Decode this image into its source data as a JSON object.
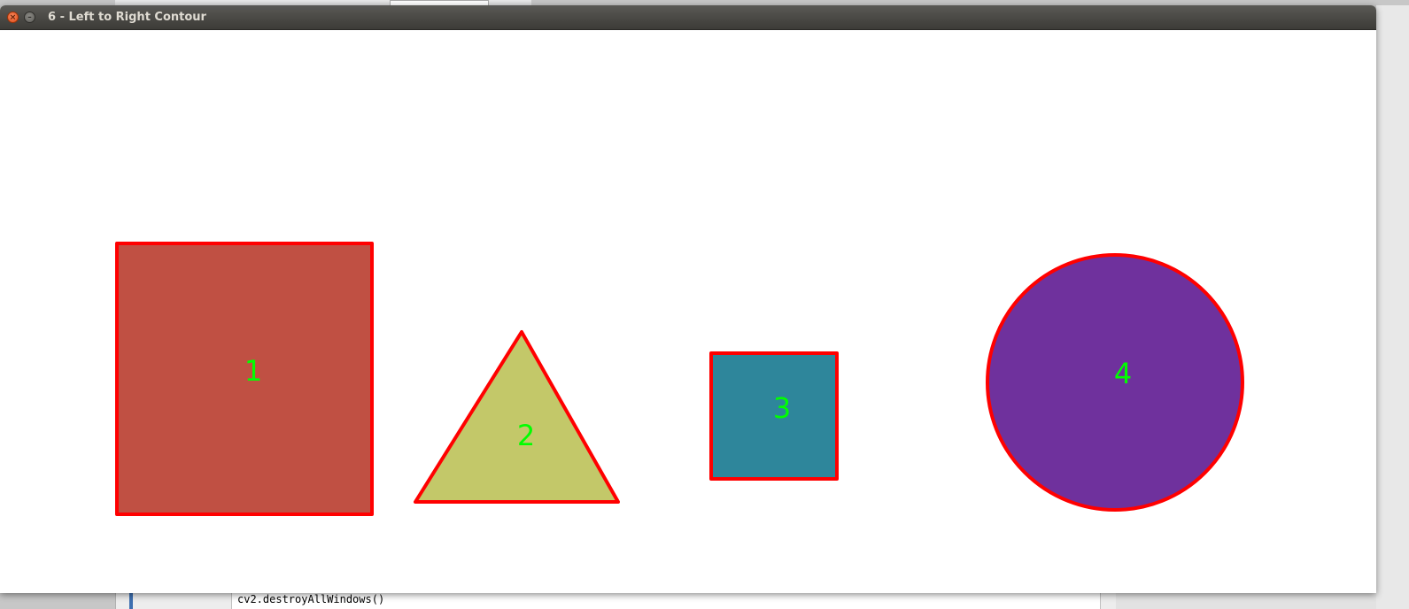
{
  "window": {
    "title": "6 - Left to Right Contour"
  },
  "controls": {
    "close_icon": "×",
    "minimize_icon": "–"
  },
  "background_editor": {
    "code_line": "cv2.destroyAllWindows()"
  },
  "colors": {
    "contour": "#ff0000",
    "label": "#00ff00",
    "square_large": "#c05043",
    "triangle": "#c3c869",
    "square_small": "#2e869b",
    "circle": "#6f319d"
  },
  "shapes": [
    {
      "type": "square",
      "label": "1"
    },
    {
      "type": "triangle",
      "label": "2"
    },
    {
      "type": "square",
      "label": "3"
    },
    {
      "type": "circle",
      "label": "4"
    }
  ]
}
